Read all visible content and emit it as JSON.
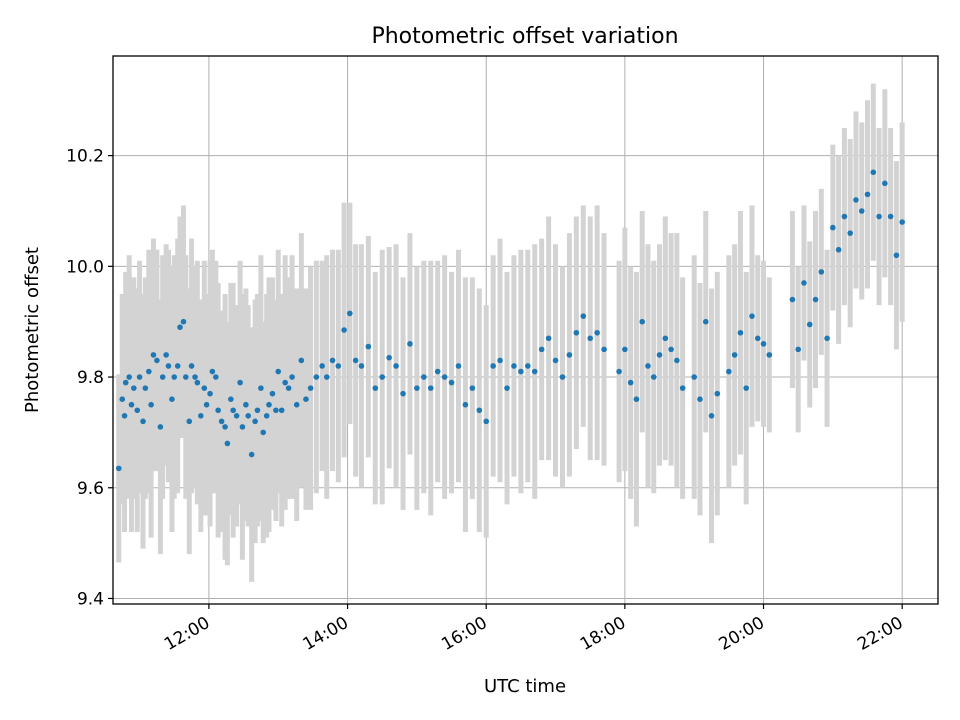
{
  "chart_data": {
    "type": "scatter",
    "title": "Photometric offset variation",
    "xlabel": "UTC time",
    "ylabel": "Photometric offset",
    "x_format": "HH:MM",
    "xlim": [
      "10:37",
      "22:31"
    ],
    "ylim": [
      9.39,
      10.38
    ],
    "x_ticks": [
      "12:00",
      "14:00",
      "16:00",
      "18:00",
      "20:00",
      "22:00"
    ],
    "y_ticks": [
      "9.4",
      "9.6",
      "9.8",
      "10.0",
      "10.2"
    ],
    "grid": true,
    "colors": {
      "points": "#1f77b4",
      "error_bars": "#d3d3d3",
      "grid": "#b0b0b0"
    },
    "series": [
      {
        "error_bars": true,
        "x": [
          "10:42",
          "10:45",
          "10:47",
          "10:48",
          "10:51",
          "10:53",
          "10:55",
          "10:58",
          "11:00",
          "11:03",
          "11:05",
          "11:08",
          "11:10",
          "11:12",
          "11:15",
          "11:18",
          "11:20",
          "11:23",
          "11:25",
          "11:28",
          "11:30",
          "11:33",
          "11:35",
          "11:38",
          "11:40",
          "11:43",
          "11:45",
          "11:48",
          "11:50",
          "11:53",
          "11:56",
          "11:58",
          "12:01",
          "12:03",
          "12:06",
          "12:08",
          "12:11",
          "12:14",
          "12:16",
          "12:19",
          "12:21",
          "12:24",
          "12:27",
          "12:29",
          "12:32",
          "12:34",
          "12:37",
          "12:40",
          "12:42",
          "12:45",
          "12:47",
          "12:50",
          "12:52",
          "12:55",
          "12:58",
          "13:00",
          "13:03",
          "13:06",
          "13:09",
          "13:12",
          "13:16",
          "13:20",
          "13:24",
          "13:28",
          "13:33",
          "13:38",
          "13:42",
          "13:47",
          "13:52",
          "13:57",
          "14:02",
          "14:07",
          "14:12",
          "14:18",
          "14:24",
          "14:30",
          "14:36",
          "14:42",
          "14:48",
          "14:54",
          "15:00",
          "15:06",
          "15:12",
          "15:18",
          "15:24",
          "15:30",
          "15:36",
          "15:42",
          "15:48",
          "15:54",
          "16:00",
          "16:06",
          "16:12",
          "16:18",
          "16:24",
          "16:30",
          "16:36",
          "16:42",
          "16:48",
          "16:54",
          "17:00",
          "17:06",
          "17:12",
          "17:18",
          "17:24",
          "17:30",
          "17:36",
          "17:42",
          "17:55",
          "18:00",
          "18:05",
          "18:10",
          "18:15",
          "18:20",
          "18:25",
          "18:30",
          "18:35",
          "18:40",
          "18:45",
          "18:50",
          "19:00",
          "19:05",
          "19:10",
          "19:15",
          "19:20",
          "19:30",
          "19:35",
          "19:40",
          "19:45",
          "19:50",
          "19:55",
          "20:00",
          "20:05",
          "20:25",
          "20:30",
          "20:35",
          "20:40",
          "20:45",
          "20:50",
          "20:55",
          "21:00",
          "21:05",
          "21:10",
          "21:15",
          "21:20",
          "21:25",
          "21:30",
          "21:35",
          "21:40",
          "21:45",
          "21:50",
          "21:55",
          "22:00"
        ],
        "y": [
          9.635,
          9.76,
          9.73,
          9.79,
          9.8,
          9.75,
          9.78,
          9.74,
          9.8,
          9.72,
          9.78,
          9.81,
          9.75,
          9.84,
          9.83,
          9.71,
          9.8,
          9.84,
          9.82,
          9.76,
          9.8,
          9.82,
          9.89,
          9.9,
          9.8,
          9.72,
          9.82,
          9.8,
          9.79,
          9.73,
          9.78,
          9.75,
          9.77,
          9.81,
          9.8,
          9.74,
          9.72,
          9.71,
          9.68,
          9.76,
          9.74,
          9.73,
          9.79,
          9.71,
          9.75,
          9.73,
          9.66,
          9.72,
          9.74,
          9.78,
          9.7,
          9.73,
          9.75,
          9.77,
          9.74,
          9.81,
          9.74,
          9.79,
          9.78,
          9.8,
          9.75,
          9.83,
          9.76,
          9.78,
          9.8,
          9.82,
          9.8,
          9.83,
          9.82,
          9.885,
          9.915,
          9.83,
          9.82,
          9.855,
          9.78,
          9.8,
          9.835,
          9.82,
          9.77,
          9.86,
          9.78,
          9.8,
          9.78,
          9.81,
          9.8,
          9.79,
          9.82,
          9.75,
          9.78,
          9.74,
          9.72,
          9.82,
          9.83,
          9.78,
          9.82,
          9.81,
          9.82,
          9.81,
          9.85,
          9.87,
          9.83,
          9.8,
          9.84,
          9.88,
          9.91,
          9.87,
          9.88,
          9.85,
          9.81,
          9.85,
          9.79,
          9.76,
          9.9,
          9.82,
          9.8,
          9.84,
          9.87,
          9.85,
          9.83,
          9.78,
          9.8,
          9.76,
          9.9,
          9.73,
          9.77,
          9.81,
          9.84,
          9.88,
          9.78,
          9.91,
          9.87,
          9.86,
          9.84,
          9.94,
          9.85,
          9.97,
          9.895,
          9.94,
          9.99,
          9.87,
          10.07,
          10.03,
          10.09,
          10.06,
          10.12,
          10.1,
          10.13,
          10.17,
          10.09,
          10.15,
          10.09,
          10.02,
          10.08
        ],
        "err": [
          0.17,
          0.19,
          0.21,
          0.2,
          0.22,
          0.23,
          0.2,
          0.22,
          0.21,
          0.23,
          0.2,
          0.22,
          0.24,
          0.21,
          0.2,
          0.23,
          0.22,
          0.2,
          0.21,
          0.24,
          0.22,
          0.23,
          0.2,
          0.21,
          0.22,
          0.24,
          0.23,
          0.2,
          0.22,
          0.21,
          0.23,
          0.2,
          0.24,
          0.22,
          0.21,
          0.23,
          0.2,
          0.24,
          0.22,
          0.21,
          0.23,
          0.2,
          0.22,
          0.24,
          0.21,
          0.2,
          0.23,
          0.22,
          0.21,
          0.24,
          0.2,
          0.22,
          0.23,
          0.21,
          0.2,
          0.22,
          0.21,
          0.23,
          0.2,
          0.22,
          0.21,
          0.23,
          0.2,
          0.22,
          0.21,
          0.19,
          0.22,
          0.2,
          0.21,
          0.23,
          0.2,
          0.21,
          0.22,
          0.2,
          0.21,
          0.23,
          0.2,
          0.22,
          0.21,
          0.2,
          0.22,
          0.21,
          0.23,
          0.2,
          0.22,
          0.2,
          0.21,
          0.23,
          0.2,
          0.22,
          0.21,
          0.2,
          0.22,
          0.21,
          0.2,
          0.22,
          0.21,
          0.23,
          0.2,
          0.22,
          0.21,
          0.2,
          0.22,
          0.21,
          0.2,
          0.22,
          0.23,
          0.21,
          0.2,
          0.22,
          0.21,
          0.23,
          0.2,
          0.22,
          0.21,
          0.2,
          0.22,
          0.21,
          0.23,
          0.2,
          0.22,
          0.21,
          0.2,
          0.23,
          0.22,
          0.21,
          0.2,
          0.22,
          0.21,
          0.2,
          0.15,
          0.15,
          0.14,
          0.16,
          0.15,
          0.14,
          0.15,
          0.16,
          0.15,
          0.16,
          0.15,
          0.17,
          0.16,
          0.17,
          0.16,
          0.16,
          0.17,
          0.16,
          0.16,
          0.17,
          0.16,
          0.17,
          0.18
        ]
      }
    ]
  }
}
